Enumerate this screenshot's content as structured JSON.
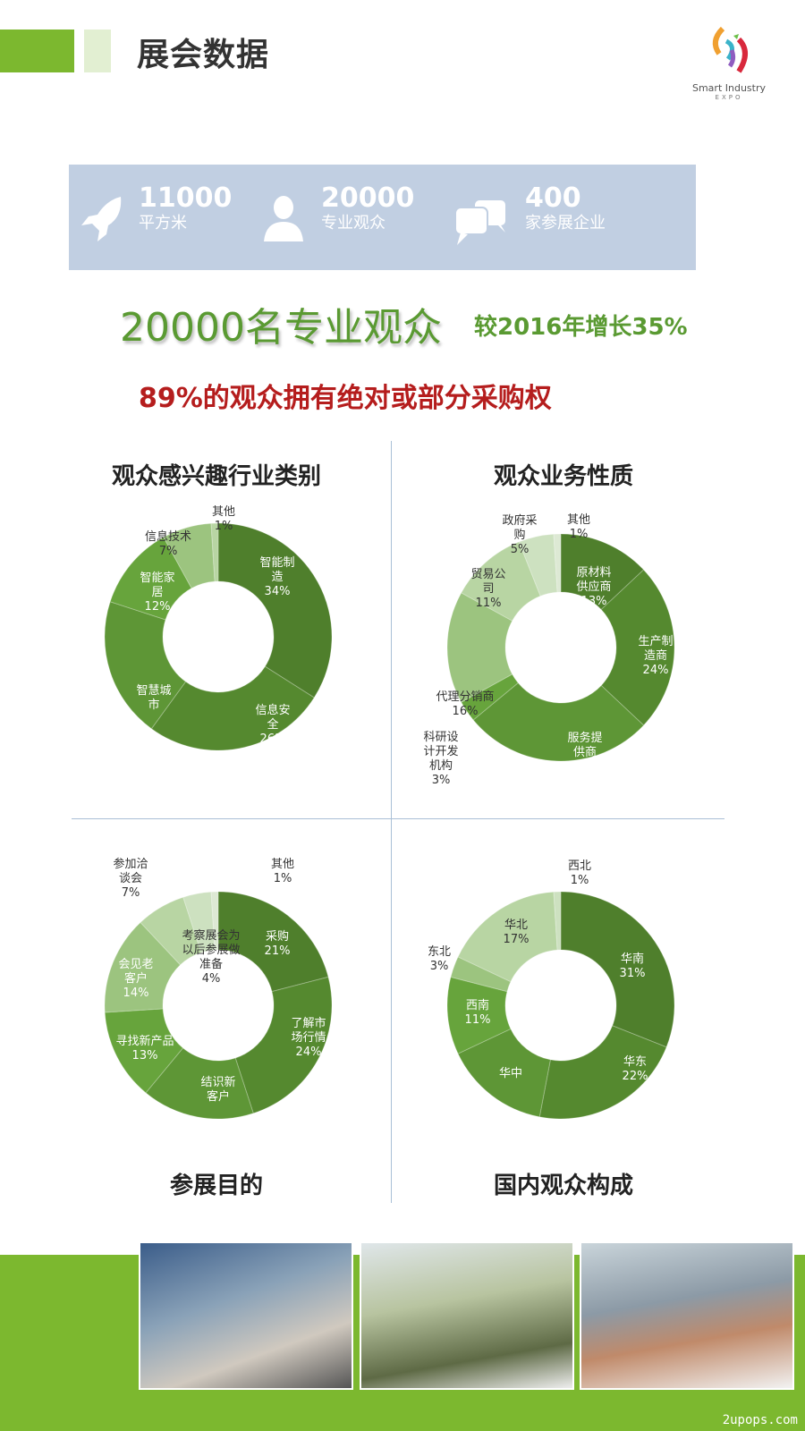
{
  "header": {
    "title": "展会数据",
    "logo_text": "Smart Industry",
    "logo_sub": "EXPO"
  },
  "stats": [
    {
      "icon": "rocket-icon",
      "value": "11000",
      "label": "平方米"
    },
    {
      "icon": "person-icon",
      "value": "20000",
      "label": "专业观众"
    },
    {
      "icon": "chat-bubbles-icon",
      "value": "400",
      "label": "家参展企业"
    }
  ],
  "headline": {
    "main": "20000名专业观众",
    "growth": "较2016年增长35%",
    "highlight": "89%的观众拥有绝对或部分采购权"
  },
  "colors": {
    "brand_green": "#7cb82f",
    "headline_green": "#5a9a32",
    "highlight_red": "#b51d1d",
    "stats_bg": "#c1cfe2"
  },
  "chart_data": [
    {
      "type": "pie",
      "donut": true,
      "title": "观众感兴趣行业类别",
      "slices": [
        {
          "name": "智能制造",
          "value": 34,
          "label": "智能制\n造\n34%"
        },
        {
          "name": "信息安全",
          "value": 26,
          "label": "信息安\n全\n26%"
        },
        {
          "name": "智慧城市",
          "value": 20,
          "label": "智慧城\n市"
        },
        {
          "name": "智能家居",
          "value": 12,
          "label": "智能家\n居\n12%"
        },
        {
          "name": "信息技术",
          "value": 7,
          "label": "信息技术\n7%"
        },
        {
          "name": "其他",
          "value": 1,
          "label": "其他\n1%"
        }
      ]
    },
    {
      "type": "pie",
      "donut": true,
      "title": "观众业务性质",
      "slices": [
        {
          "name": "原材料供应商",
          "value": 13,
          "label": "原材料\n供应商\n13%"
        },
        {
          "name": "生产制造商",
          "value": 24,
          "label": "生产制\n造商\n24%"
        },
        {
          "name": "服务提供商",
          "value": 27,
          "label": "服务提\n供商"
        },
        {
          "name": "科研设计开发机构",
          "value": 3,
          "label": "科研设\n计开发\n机构\n3%"
        },
        {
          "name": "代理分销商",
          "value": 16,
          "label": "代理分销商\n16%"
        },
        {
          "name": "贸易公司",
          "value": 11,
          "label": "贸易公\n司\n11%"
        },
        {
          "name": "政府采购",
          "value": 5,
          "label": "政府采\n购\n5%"
        },
        {
          "name": "其他",
          "value": 1,
          "label": "其他\n1%"
        }
      ]
    },
    {
      "type": "pie",
      "donut": true,
      "title": "参展目的",
      "slices": [
        {
          "name": "采购",
          "value": 21,
          "label": "采购\n21%"
        },
        {
          "name": "了解市场行情",
          "value": 24,
          "label": "了解市\n场行情\n24%"
        },
        {
          "name": "结识新客户",
          "value": 16,
          "label": "结识新\n客户"
        },
        {
          "name": "寻找新产品",
          "value": 13,
          "label": "寻找新产品\n13%"
        },
        {
          "name": "会见老客户",
          "value": 14,
          "label": "会见老\n客户\n14%"
        },
        {
          "name": "参加洽谈会",
          "value": 7,
          "label": "参加洽\n谈会\n7%"
        },
        {
          "name": "考察展会为以后参展做准备",
          "value": 4,
          "label": "考察展会为\n以后参展做\n准备\n4%"
        },
        {
          "name": "其他",
          "value": 1,
          "label": "其他\n1%"
        }
      ]
    },
    {
      "type": "pie",
      "donut": true,
      "title": "国内观众构成",
      "slices": [
        {
          "name": "华南",
          "value": 31,
          "label": "华南\n31%"
        },
        {
          "name": "华东",
          "value": 22,
          "label": "华东\n22%"
        },
        {
          "name": "华中",
          "value": 15,
          "label": "华中"
        },
        {
          "name": "西南",
          "value": 11,
          "label": "西南\n11%"
        },
        {
          "name": "东北",
          "value": 3,
          "label": "东北\n3%"
        },
        {
          "name": "华北",
          "value": 17,
          "label": "华北\n17%"
        },
        {
          "name": "西北",
          "value": 1,
          "label": "西北\n1%"
        }
      ]
    }
  ],
  "watermark": "2upops.com"
}
